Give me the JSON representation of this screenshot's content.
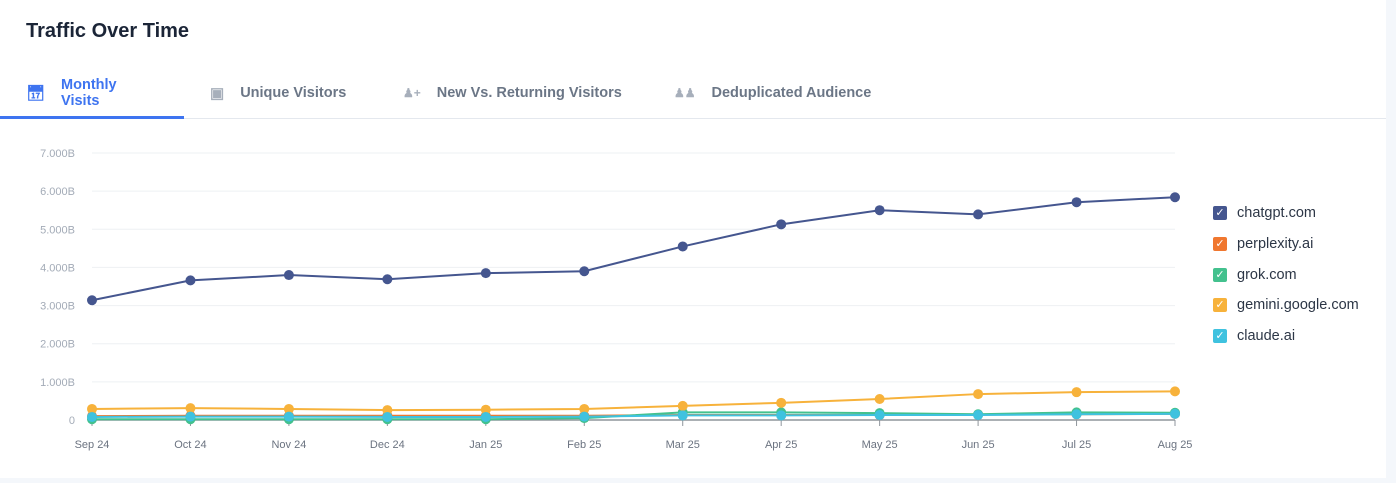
{
  "title": "Traffic Over Time",
  "tabs": [
    {
      "label": "Monthly Visits",
      "icon": "calendar-icon",
      "active": true
    },
    {
      "label": "Unique Visitors",
      "icon": "id-card-icon"
    },
    {
      "label": "New Vs. Returning Visitors",
      "icon": "user-plus-icon"
    },
    {
      "label": "Deduplicated Audience",
      "icon": "users-icon"
    }
  ],
  "chart_data": {
    "type": "line",
    "categories": [
      "Sep 24",
      "Oct 24",
      "Nov 24",
      "Dec 24",
      "Jan 25",
      "Feb 25",
      "Mar 25",
      "Apr 25",
      "May 25",
      "Jun 25",
      "Jul 25",
      "Aug 25"
    ],
    "yticks": [
      "0",
      "1.000B",
      "2.000B",
      "3.000B",
      "4.000B",
      "5.000B",
      "6.000B",
      "7.000B"
    ],
    "ylim": [
      0,
      7
    ],
    "yunit": "B",
    "grid": true,
    "legend_placement": "right",
    "series": [
      {
        "name": "chatgpt.com",
        "color": "#45568f",
        "values": [
          3.14,
          3.66,
          3.8,
          3.69,
          3.85,
          3.9,
          4.55,
          5.13,
          5.5,
          5.39,
          5.71,
          5.84
        ]
      },
      {
        "name": "perplexity.ai",
        "color": "#f0772f",
        "values": [
          0.1,
          0.11,
          0.11,
          0.11,
          0.11,
          0.11,
          0.13,
          0.13,
          0.13,
          0.14,
          0.15,
          0.16
        ]
      },
      {
        "name": "grok.com",
        "color": "#43c18e",
        "values": [
          0.02,
          0.02,
          0.02,
          0.02,
          0.02,
          0.05,
          0.2,
          0.2,
          0.18,
          0.15,
          0.2,
          0.19
        ]
      },
      {
        "name": "gemini.google.com",
        "color": "#f7b23b",
        "values": [
          0.29,
          0.31,
          0.29,
          0.26,
          0.27,
          0.29,
          0.37,
          0.45,
          0.55,
          0.68,
          0.73,
          0.75
        ]
      },
      {
        "name": "claude.ai",
        "color": "#3fc2df",
        "values": [
          0.08,
          0.09,
          0.09,
          0.08,
          0.08,
          0.09,
          0.12,
          0.12,
          0.13,
          0.13,
          0.15,
          0.16
        ]
      }
    ]
  }
}
